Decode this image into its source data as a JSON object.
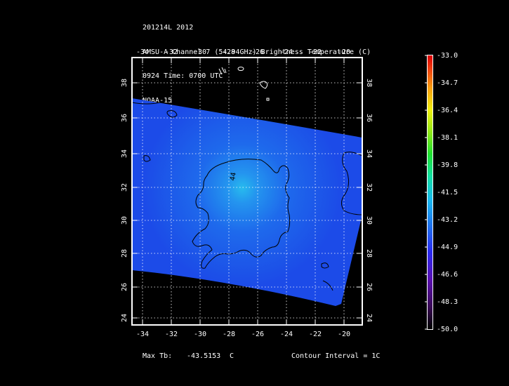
{
  "header": {
    "line1": "201214L 2012",
    "line2": "AMSU-A Channel 7 (54.94GHz) Brightness Temperature (C)",
    "line3": "0924 Time: 0700 UTC",
    "line4": "NOAA-15"
  },
  "map": {
    "lon_labels": [
      "-34",
      "-32",
      "-30",
      "-28",
      "-26",
      "-24",
      "-22",
      "-20"
    ],
    "lat_labels": [
      "24",
      "26",
      "28",
      "30",
      "32",
      "34",
      "36",
      "38"
    ],
    "contour_label": "44",
    "colors": {
      "background": "#000000",
      "field_base": "#1d4fe9",
      "field_warm": "#2bd7f0",
      "contour": "#000000",
      "grid": "#ffffff"
    }
  },
  "colorbar": {
    "labels": [
      "-33.0",
      "-34.7",
      "-36.4",
      "-38.1",
      "-39.8",
      "-41.5",
      "-43.2",
      "-44.9",
      "-46.6",
      "-48.3",
      "-50.0"
    ]
  },
  "footer": {
    "max_label": "Max Tb:",
    "max_value": "-43.5153",
    "max_unit": "C",
    "contour_interval": "Contour Interval = 1C"
  }
}
